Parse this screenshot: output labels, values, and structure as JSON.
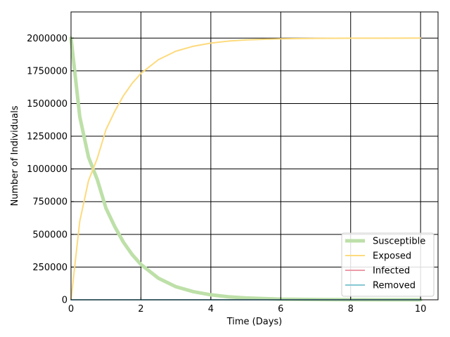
{
  "chart_data": {
    "type": "line",
    "title": "",
    "xlabel": "Time (Days)",
    "ylabel": "Number of Individuals",
    "xlim": [
      0,
      10.5
    ],
    "ylim": [
      0,
      2200000
    ],
    "xticks": [
      0,
      2,
      4,
      6,
      8,
      10
    ],
    "yticks": [
      0,
      250000,
      500000,
      750000,
      1000000,
      1250000,
      1500000,
      1750000,
      2000000
    ],
    "grid": true,
    "legend_position": "lower-right",
    "x": [
      0,
      0.25,
      0.5,
      0.75,
      1,
      1.25,
      1.5,
      1.75,
      2,
      2.5,
      3,
      3.5,
      4,
      4.5,
      5,
      6,
      7,
      8,
      9,
      10
    ],
    "series": [
      {
        "name": "Susceptible",
        "color": "#bde0a8",
        "values": [
          2000000,
          1400000,
          1090000,
          920000,
          700000,
          560000,
          440000,
          345000,
          270000,
          165000,
          100000,
          62000,
          38000,
          23000,
          14000,
          5000,
          2000,
          700,
          300,
          100
        ]
      },
      {
        "name": "Exposed",
        "color": "#fdda7c",
        "values": [
          0,
          600000,
          910000,
          1080000,
          1300000,
          1440000,
          1560000,
          1655000,
          1730000,
          1835000,
          1900000,
          1938000,
          1962000,
          1977000,
          1986000,
          1995000,
          1998000,
          1999300,
          1999700,
          1999900
        ]
      },
      {
        "name": "Infected",
        "color": "#ec9aa9",
        "values": [
          0,
          0,
          0,
          0,
          0,
          0,
          0,
          0,
          0,
          0,
          0,
          0,
          0,
          0,
          0,
          0,
          0,
          0,
          0,
          0
        ]
      },
      {
        "name": "Removed",
        "color": "#86c8d3",
        "values": [
          0,
          0,
          0,
          0,
          0,
          0,
          0,
          0,
          0,
          0,
          0,
          0,
          0,
          0,
          0,
          0,
          0,
          0,
          0,
          0
        ]
      }
    ]
  }
}
